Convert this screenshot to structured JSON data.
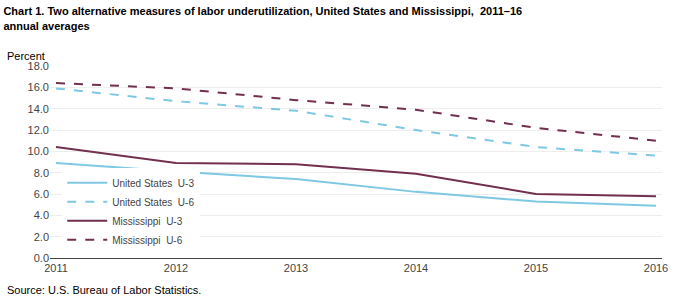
{
  "chart_data": {
    "type": "line",
    "title": "Chart 1. Two alternative measures of labor underutilization, United States and Mississippi,  2011–16",
    "subtitle": "annual averages",
    "ylabel": "Percent",
    "annotations": [
      "Source: U.S. Bureau of Labor Statistics."
    ],
    "x": [
      2011,
      2012,
      2013,
      2014,
      2015,
      2016
    ],
    "series": [
      {
        "name": "United States  U-3",
        "color": "#7EC8E3",
        "line_style": "solid",
        "values": [
          8.9,
          8.1,
          7.4,
          6.2,
          5.3,
          4.9
        ]
      },
      {
        "name": "United States  U-6",
        "color": "#7EC8E3",
        "line_style": "dashed",
        "values": [
          15.9,
          14.7,
          13.8,
          12.0,
          10.4,
          9.6
        ]
      },
      {
        "name": "Mississippi  U-3",
        "color": "#722F4F",
        "line_style": "solid",
        "values": [
          10.4,
          8.9,
          8.8,
          7.9,
          6.0,
          5.8
        ]
      },
      {
        "name": "Mississippi  U-6",
        "color": "#722F4F",
        "line_style": "dashed",
        "values": [
          16.4,
          15.9,
          14.8,
          13.9,
          12.2,
          11.0
        ]
      }
    ],
    "xlim": [
      2010.95,
      2016.05
    ],
    "xticks": [
      2011,
      2012,
      2013,
      2014,
      2015,
      2016
    ],
    "ylim": [
      0.0,
      18.0
    ],
    "yticks": [
      {
        "value": 0.0,
        "label": "0.0"
      },
      {
        "value": 2.0,
        "label": "2.0"
      },
      {
        "value": 4.0,
        "label": "4.0"
      },
      {
        "value": 6.0,
        "label": "6.0"
      },
      {
        "value": 8.0,
        "label": "8.0"
      },
      {
        "value": 10.0,
        "label": "10.0"
      },
      {
        "value": 12.0,
        "label": "12.0"
      },
      {
        "value": 14.0,
        "label": "14.0"
      },
      {
        "value": 16.0,
        "label": "16.0"
      },
      {
        "value": 18.0,
        "label": "18.0"
      }
    ],
    "grid": "y",
    "legend": "lower left"
  }
}
